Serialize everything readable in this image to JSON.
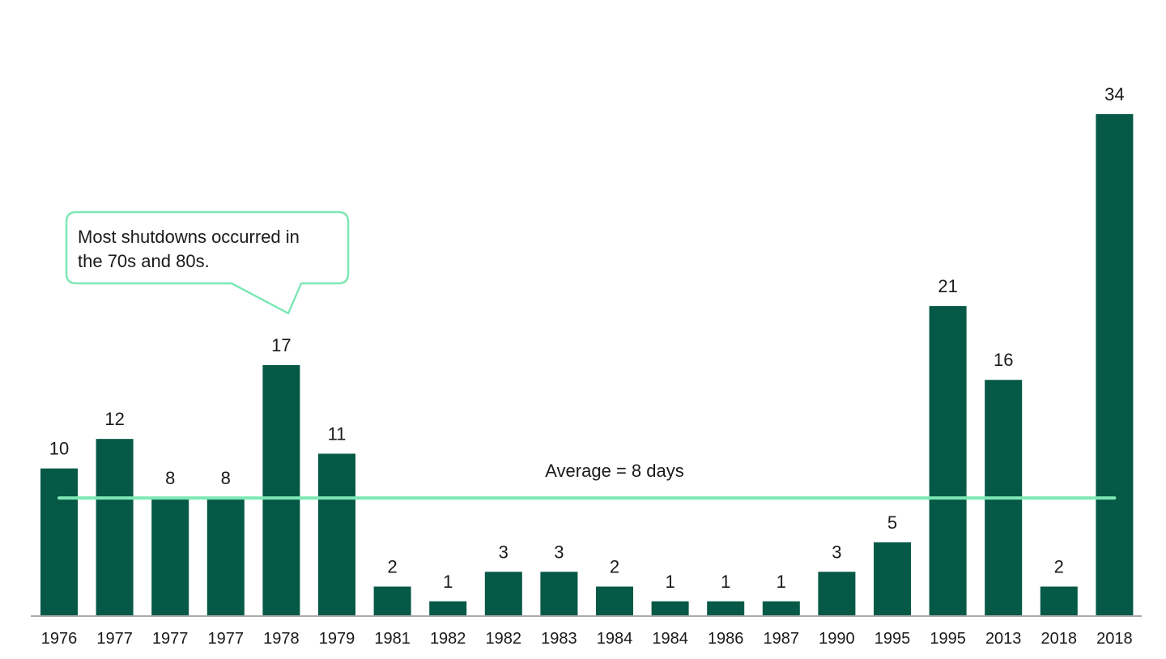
{
  "chart_data": {
    "type": "bar",
    "categories": [
      "1976",
      "1977",
      "1977",
      "1977",
      "1978",
      "1979",
      "1981",
      "1982",
      "1982",
      "1983",
      "1984",
      "1984",
      "1986",
      "1987",
      "1990",
      "1995",
      "1995",
      "2013",
      "2018",
      "2018"
    ],
    "values": [
      10,
      12,
      8,
      8,
      17,
      11,
      2,
      1,
      3,
      3,
      2,
      1,
      1,
      1,
      3,
      5,
      21,
      16,
      2,
      34
    ],
    "ylim": [
      0,
      34
    ],
    "grid": false,
    "legend": "none",
    "average": {
      "value": 8,
      "label": "Average = 8 days"
    },
    "annotation": {
      "lines": [
        "Most shutdowns occurred in",
        "the 70s and 80s."
      ]
    },
    "colors": {
      "bar": "#055946",
      "average_line": "#7ee8b4",
      "callout_border": "#7ee8b4",
      "axis": "#aaaaaa"
    }
  }
}
